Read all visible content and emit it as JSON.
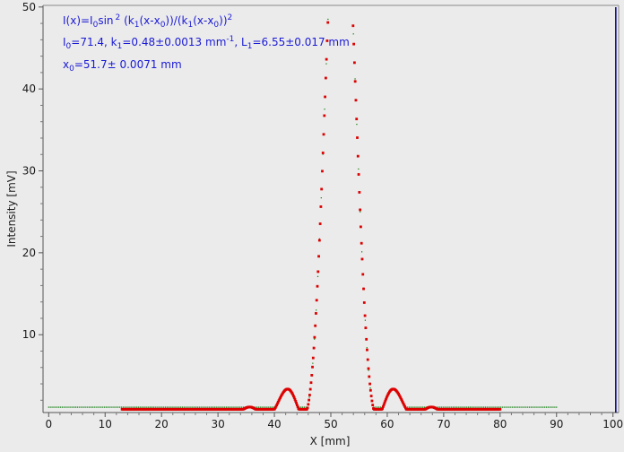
{
  "chart_data": {
    "type": "scatter",
    "title": "",
    "xlabel": "X [mm]",
    "ylabel": "Intensity [mV]",
    "xlim": [
      -1,
      101
    ],
    "ylim": [
      0.5,
      50.2
    ],
    "xticks": [
      0,
      10,
      20,
      30,
      40,
      50,
      60,
      70,
      80,
      90,
      100
    ],
    "yticks": [
      10,
      20,
      30,
      40,
      50
    ],
    "grid": false,
    "legend": "none",
    "colors": {
      "fit": "#dd0000",
      "measured": "#007700",
      "annotation": "#1a1ad6",
      "marker_line": "#000080",
      "background": "#ebebeb"
    },
    "fit_model": {
      "I0": 71.4,
      "k1": 0.48,
      "x0": 51.7,
      "x_range": [
        13,
        80
      ],
      "points": 540,
      "y_max_visible": 49.2
    },
    "measured_model": {
      "x_range": [
        0,
        90
      ],
      "baseline": 1.15,
      "points": 300
    },
    "vertical_marker_x": 100.5,
    "annotations": [
      {
        "id": "formula",
        "base": "I(x)=I",
        "sub0": "0",
        "mid": "sin",
        "sup1": "2",
        "tail1": " (k",
        "sub1": "1",
        "tail2": "(x-x",
        "sub2": "0",
        "tail3": "))/(k",
        "sub3": "1",
        "tail4": "(x-x",
        "sub4": "0",
        "tail5": "))",
        "sup5": "2"
      },
      {
        "id": "params",
        "p1": "I",
        "p1s": "0",
        "p1v": "=71.4,  k",
        "p2s": "1",
        "p2v": "=0.48±0.0013 mm",
        "p2sup": "-1",
        "p3": ",   L",
        "p3s": "1",
        "p3v": "=6.55±0.017 mm"
      },
      {
        "id": "x0",
        "p1": "x",
        "p1s": "0",
        "p1v": "=51.7±  0.0071 mm"
      }
    ]
  }
}
